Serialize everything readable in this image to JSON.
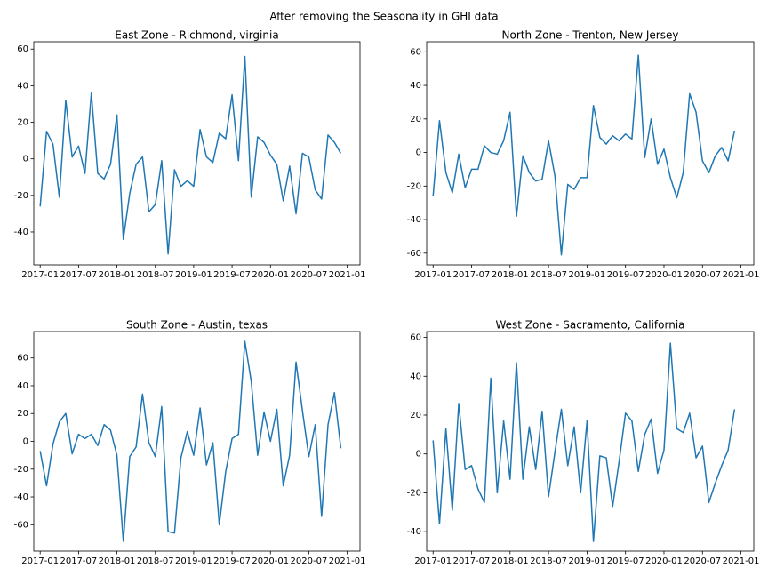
{
  "title": "After removing the Seasonality in GHI data",
  "chart_data": [
    {
      "type": "line",
      "title": "East Zone - Richmond, virginia",
      "x": [
        "2017-01",
        "2017-02",
        "2017-03",
        "2017-04",
        "2017-05",
        "2017-06",
        "2017-07",
        "2017-08",
        "2017-09",
        "2017-10",
        "2017-11",
        "2017-12",
        "2018-01",
        "2018-02",
        "2018-03",
        "2018-04",
        "2018-05",
        "2018-06",
        "2018-07",
        "2018-08",
        "2018-09",
        "2018-10",
        "2018-11",
        "2018-12",
        "2019-01",
        "2019-02",
        "2019-03",
        "2019-04",
        "2019-05",
        "2019-06",
        "2019-07",
        "2019-08",
        "2019-09",
        "2019-10",
        "2019-11",
        "2019-12",
        "2020-01",
        "2020-02",
        "2020-03",
        "2020-04",
        "2020-05",
        "2020-06",
        "2020-07",
        "2020-08",
        "2020-09",
        "2020-10",
        "2020-11",
        "2020-12"
      ],
      "values": [
        -26,
        15,
        8,
        -21,
        32,
        1,
        7,
        -8,
        36,
        -8,
        -11,
        -3,
        24,
        -44,
        -19,
        -3,
        1,
        -29,
        -25,
        -1,
        -52,
        -6,
        -15,
        -12,
        -15,
        16,
        1,
        -2,
        14,
        11,
        35,
        -1,
        56,
        -21,
        12,
        9,
        2,
        -3,
        -23,
        -4,
        -30,
        3,
        1,
        -17,
        -22,
        13,
        9,
        3
      ],
      "color": "#1f77b4",
      "xlim": [
        "2016-12",
        "2021-03"
      ],
      "ylim": [
        -58,
        64
      ],
      "xticks": [
        "2017-01",
        "2017-07",
        "2018-01",
        "2018-07",
        "2019-01",
        "2019-07",
        "2020-01",
        "2020-07",
        "2021-01"
      ],
      "yticks": [
        -40,
        -20,
        0,
        20,
        40,
        60
      ]
    },
    {
      "type": "line",
      "title": "North Zone - Trenton, New Jersey",
      "x": [
        "2017-01",
        "2017-02",
        "2017-03",
        "2017-04",
        "2017-05",
        "2017-06",
        "2017-07",
        "2017-08",
        "2017-09",
        "2017-10",
        "2017-11",
        "2017-12",
        "2018-01",
        "2018-02",
        "2018-03",
        "2018-04",
        "2018-05",
        "2018-06",
        "2018-07",
        "2018-08",
        "2018-09",
        "2018-10",
        "2018-11",
        "2018-12",
        "2019-01",
        "2019-02",
        "2019-03",
        "2019-04",
        "2019-05",
        "2019-06",
        "2019-07",
        "2019-08",
        "2019-09",
        "2019-10",
        "2019-11",
        "2019-12",
        "2020-01",
        "2020-02",
        "2020-03",
        "2020-04",
        "2020-05",
        "2020-06",
        "2020-07",
        "2020-08",
        "2020-09",
        "2020-10",
        "2020-11",
        "2020-12"
      ],
      "values": [
        -26,
        19,
        -12,
        -24,
        -1,
        -21,
        -10,
        -10,
        4,
        0,
        -1,
        7,
        24,
        -38,
        -2,
        -12,
        -17,
        -16,
        7,
        -14,
        -61,
        -19,
        -22,
        -15,
        -15,
        28,
        9,
        5,
        10,
        7,
        11,
        8,
        58,
        -3,
        20,
        -7,
        2,
        -15,
        -27,
        -12,
        35,
        24,
        -5,
        -12,
        -2,
        3,
        -5,
        13
      ],
      "color": "#1f77b4",
      "xlim": [
        "2016-12",
        "2021-03"
      ],
      "ylim": [
        -67,
        66
      ],
      "xticks": [
        "2017-01",
        "2017-07",
        "2018-01",
        "2018-07",
        "2019-01",
        "2019-07",
        "2020-01",
        "2020-07",
        "2021-01"
      ],
      "yticks": [
        -60,
        -40,
        -20,
        0,
        20,
        40,
        60
      ]
    },
    {
      "type": "line",
      "title": "South Zone - Austin, texas",
      "x": [
        "2017-01",
        "2017-02",
        "2017-03",
        "2017-04",
        "2017-05",
        "2017-06",
        "2017-07",
        "2017-08",
        "2017-09",
        "2017-10",
        "2017-11",
        "2017-12",
        "2018-01",
        "2018-02",
        "2018-03",
        "2018-04",
        "2018-05",
        "2018-06",
        "2018-07",
        "2018-08",
        "2018-09",
        "2018-10",
        "2018-11",
        "2018-12",
        "2019-01",
        "2019-02",
        "2019-03",
        "2019-04",
        "2019-05",
        "2019-06",
        "2019-07",
        "2019-08",
        "2019-09",
        "2019-10",
        "2019-11",
        "2019-12",
        "2020-01",
        "2020-02",
        "2020-03",
        "2020-04",
        "2020-05",
        "2020-06",
        "2020-07",
        "2020-08",
        "2020-09",
        "2020-10",
        "2020-11",
        "2020-12"
      ],
      "values": [
        -7,
        -32,
        -2,
        14,
        20,
        -9,
        5,
        2,
        5,
        -3,
        12,
        8,
        -10,
        -72,
        -11,
        -4,
        34,
        -1,
        -11,
        25,
        -65,
        -66,
        -12,
        7,
        -10,
        24,
        -17,
        -1,
        -60,
        -22,
        2,
        5,
        72,
        43,
        -10,
        21,
        0,
        23,
        -32,
        -10,
        57,
        22,
        -11,
        12,
        -54,
        12,
        35,
        -5
      ],
      "color": "#1f77b4",
      "xlim": [
        "2016-12",
        "2021-03"
      ],
      "ylim": [
        -79,
        79
      ],
      "xticks": [
        "2017-01",
        "2017-07",
        "2018-01",
        "2018-07",
        "2019-01",
        "2019-07",
        "2020-01",
        "2020-07",
        "2021-01"
      ],
      "yticks": [
        -60,
        -40,
        -20,
        0,
        20,
        40,
        60
      ]
    },
    {
      "type": "line",
      "title": "West Zone - Sacramento, California",
      "x": [
        "2017-01",
        "2017-02",
        "2017-03",
        "2017-04",
        "2017-05",
        "2017-06",
        "2017-07",
        "2017-08",
        "2017-09",
        "2017-10",
        "2017-11",
        "2017-12",
        "2018-01",
        "2018-02",
        "2018-03",
        "2018-04",
        "2018-05",
        "2018-06",
        "2018-07",
        "2018-08",
        "2018-09",
        "2018-10",
        "2018-11",
        "2018-12",
        "2019-01",
        "2019-02",
        "2019-03",
        "2019-04",
        "2019-05",
        "2019-06",
        "2019-07",
        "2019-08",
        "2019-09",
        "2019-10",
        "2019-11",
        "2019-12",
        "2020-01",
        "2020-02",
        "2020-03",
        "2020-04",
        "2020-05",
        "2020-06",
        "2020-07",
        "2020-08",
        "2020-09",
        "2020-10",
        "2020-11",
        "2020-12"
      ],
      "values": [
        7,
        -36,
        13,
        -29,
        26,
        -8,
        -6,
        -18,
        -25,
        39,
        -20,
        17,
        -13,
        47,
        -13,
        14,
        -8,
        22,
        -22,
        1,
        23,
        -6,
        14,
        -20,
        17,
        -45,
        -1,
        -2,
        -27,
        -4,
        21,
        17,
        -9,
        10,
        18,
        -10,
        2,
        57,
        13,
        11,
        21,
        -2,
        4,
        -25,
        -15,
        -6,
        2,
        23
      ],
      "color": "#1f77b4",
      "xlim": [
        "2016-12",
        "2021-03"
      ],
      "ylim": [
        -50,
        63
      ],
      "xticks": [
        "2017-01",
        "2017-07",
        "2018-01",
        "2018-07",
        "2019-01",
        "2019-07",
        "2020-01",
        "2020-07",
        "2021-01"
      ],
      "yticks": [
        -40,
        -20,
        0,
        20,
        40,
        60
      ]
    }
  ]
}
